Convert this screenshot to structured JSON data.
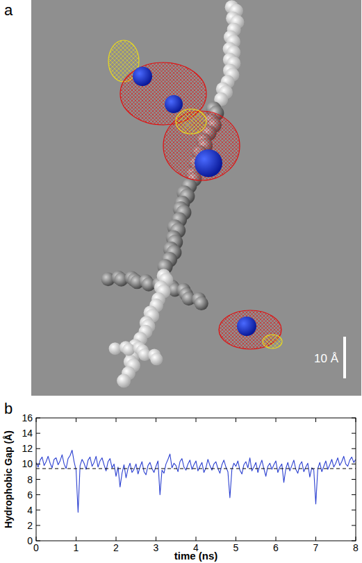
{
  "image_panel": {
    "label": "a",
    "scale_bar": "10 Å"
  },
  "chart_data": {
    "type": "line",
    "panel_label": "b",
    "x_label": "time (ns)",
    "y_label": "Hydrophobic Gap (Å)",
    "xlim": [
      0,
      8
    ],
    "xticks": [
      0,
      1,
      2,
      3,
      4,
      5,
      6,
      7,
      8
    ],
    "ylim": [
      0,
      16
    ],
    "yticks": [
      0,
      2,
      4,
      6,
      8,
      10,
      12,
      14,
      16
    ],
    "reference_line": 9.4,
    "x": [
      0,
      0.05,
      0.1,
      0.15,
      0.2,
      0.25,
      0.3,
      0.35,
      0.4,
      0.45,
      0.5,
      0.55,
      0.6,
      0.65,
      0.7,
      0.75,
      0.8,
      0.85,
      0.9,
      0.95,
      1,
      1.05,
      1.1,
      1.15,
      1.2,
      1.25,
      1.3,
      1.35,
      1.4,
      1.45,
      1.5,
      1.55,
      1.6,
      1.65,
      1.7,
      1.75,
      1.8,
      1.85,
      1.9,
      1.95,
      2,
      2.05,
      2.1,
      2.15,
      2.2,
      2.25,
      2.3,
      2.35,
      2.4,
      2.45,
      2.5,
      2.55,
      2.6,
      2.65,
      2.7,
      2.75,
      2.8,
      2.85,
      2.9,
      2.95,
      3,
      3.05,
      3.1,
      3.15,
      3.2,
      3.25,
      3.3,
      3.35,
      3.4,
      3.45,
      3.5,
      3.55,
      3.6,
      3.65,
      3.7,
      3.75,
      3.8,
      3.85,
      3.9,
      3.95,
      4,
      4.05,
      4.1,
      4.15,
      4.2,
      4.25,
      4.3,
      4.35,
      4.4,
      4.45,
      4.5,
      4.55,
      4.6,
      4.65,
      4.7,
      4.75,
      4.8,
      4.85,
      4.9,
      4.95,
      5,
      5.05,
      5.1,
      5.15,
      5.2,
      5.25,
      5.3,
      5.35,
      5.4,
      5.45,
      5.5,
      5.55,
      5.6,
      5.65,
      5.7,
      5.75,
      5.8,
      5.85,
      5.9,
      5.95,
      6,
      6.05,
      6.1,
      6.15,
      6.2,
      6.25,
      6.3,
      6.35,
      6.4,
      6.45,
      6.5,
      6.55,
      6.6,
      6.65,
      6.7,
      6.75,
      6.8,
      6.85,
      6.9,
      6.95,
      7,
      7.05,
      7.1,
      7.15,
      7.2,
      7.25,
      7.3,
      7.35,
      7.4,
      7.45,
      7.5,
      7.55,
      7.6,
      7.65,
      7.7,
      7.75,
      7.8,
      7.85,
      7.9,
      7.95,
      8
    ],
    "series": [
      {
        "name": "hydrophobic gap",
        "color": "#2a3fd0",
        "values": [
          10.2,
          9.6,
          10.5,
          10.9,
          9.8,
          10.3,
          11.0,
          10.1,
          9.5,
          10.6,
          10.8,
          9.9,
          10.4,
          11.2,
          10.0,
          9.4,
          10.7,
          11.1,
          11.8,
          10.3,
          9.2,
          3.7,
          9.8,
          10.6,
          10.1,
          9.3,
          10.5,
          10.9,
          9.7,
          10.2,
          11.0,
          9.6,
          10.4,
          10.8,
          9.9,
          9.1,
          10.3,
          10.7,
          9.5,
          10.0,
          8.4,
          9.6,
          7.0,
          8.8,
          9.9,
          8.2,
          9.4,
          10.1,
          8.9,
          9.3,
          10.0,
          8.7,
          9.6,
          10.3,
          9.0,
          8.6,
          9.8,
          10.2,
          9.4,
          8.9,
          9.7,
          10.4,
          6.0,
          9.2,
          8.8,
          10.0,
          10.6,
          11.3,
          9.5,
          10.1,
          9.8,
          9.0,
          10.3,
          10.7,
          9.6,
          9.2,
          10.0,
          10.5,
          9.3,
          9.9,
          10.4,
          9.1,
          9.7,
          10.2,
          8.9,
          9.5,
          10.6,
          9.8,
          9.2,
          10.0,
          10.3,
          9.4,
          8.8,
          9.9,
          10.5,
          9.6,
          9.0,
          5.6,
          9.3,
          10.1,
          9.7,
          10.4,
          9.2,
          8.7,
          9.9,
          10.3,
          9.5,
          10.8,
          9.1,
          9.6,
          10.2,
          8.9,
          9.8,
          10.5,
          9.4,
          8.4,
          9.7,
          10.1,
          9.3,
          9.9,
          10.4,
          8.9,
          9.6,
          10.0,
          7.6,
          9.4,
          10.2,
          9.1,
          9.8,
          10.5,
          9.3,
          8.8,
          9.9,
          10.3,
          9.0,
          9.6,
          10.1,
          8.3,
          9.5,
          9.2,
          4.8,
          9.4,
          10.2,
          9.0,
          9.7,
          10.4,
          9.3,
          9.9,
          10.6,
          9.6,
          10.1,
          10.8,
          9.8,
          10.3,
          11.0,
          10.0,
          9.7,
          10.5,
          10.9,
          10.2,
          10.6
        ]
      }
    ],
    "grid": false
  }
}
